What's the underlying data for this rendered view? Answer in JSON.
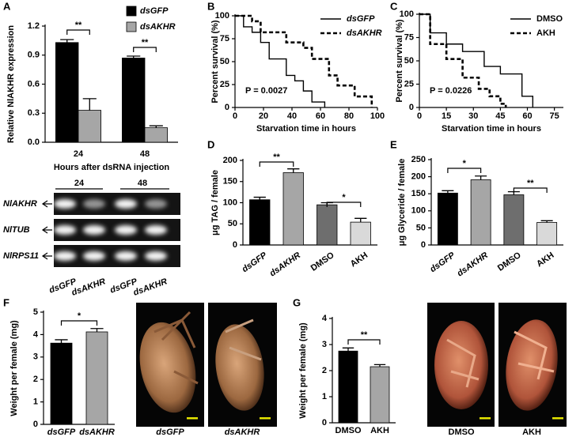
{
  "chart_data": [
    {
      "type": "bar",
      "panel_label": "A",
      "ylabel": "Relative NlAKHR expression",
      "xlabel": "Hours after dsRNA injection",
      "categories": [
        "24",
        "48"
      ],
      "series": [
        {
          "name": "dsGFP",
          "color": "#000000",
          "values": [
            1.03,
            0.87
          ],
          "errors": [
            0.03,
            0.02
          ]
        },
        {
          "name": "dsAKHR",
          "color": "#a6a6a6",
          "values": [
            0.33,
            0.15
          ],
          "errors": [
            0.12,
            0.02
          ]
        }
      ],
      "ylim": [
        0,
        1.2
      ],
      "yticks": [
        {
          "value": 0,
          "label": "0.0"
        },
        0.3,
        0.6,
        0.9,
        1.2
      ],
      "annotations": [
        "**",
        "**"
      ],
      "legend": "upper right"
    },
    {
      "type": "line",
      "panel_label": "B",
      "drawstyle": "steps-post",
      "ylabel": "Percent survival (%)",
      "xlabel": "Starvation time in hours",
      "series": [
        {
          "name": "dsGFP",
          "color": "#000000",
          "linestyle": "solid",
          "x": [
            0,
            6,
            12,
            18,
            24,
            36,
            42,
            48,
            54,
            63
          ],
          "values": [
            100,
            88,
            82,
            71,
            53,
            35,
            29,
            18,
            6,
            0
          ]
        },
        {
          "name": "dsAKHR",
          "color": "#000000",
          "linestyle": "dashed",
          "x": [
            0,
            12,
            18,
            36,
            48,
            54,
            66,
            72,
            84,
            96
          ],
          "values": [
            100,
            94,
            82,
            71,
            65,
            53,
            35,
            24,
            12,
            0
          ]
        }
      ],
      "xlim": [
        0,
        100
      ],
      "xticks": [
        0,
        20,
        40,
        60,
        80,
        100
      ],
      "ylim": [
        0,
        100
      ],
      "yticks": [
        0,
        25,
        50,
        75,
        100
      ],
      "annotation": "P = 0.0027",
      "legend": "upper right"
    },
    {
      "type": "line",
      "panel_label": "C",
      "drawstyle": "steps-post",
      "ylabel": "Percent survival (%)",
      "xlabel": "Starvation time in hours",
      "series": [
        {
          "name": "DMSO",
          "color": "#000000",
          "linestyle": "solid",
          "x": [
            0,
            6,
            15,
            24,
            36,
            45,
            57,
            63
          ],
          "values": [
            100,
            80,
            68,
            60,
            44,
            36,
            12,
            0
          ]
        },
        {
          "name": "AKH",
          "color": "#000000",
          "linestyle": "dashed",
          "x": [
            0,
            6,
            15,
            24,
            33,
            39,
            45,
            48
          ],
          "values": [
            100,
            68,
            52,
            32,
            20,
            12,
            4,
            0
          ]
        }
      ],
      "xlim": [
        0,
        80
      ],
      "xticks": [
        0,
        15,
        30,
        45,
        60,
        75
      ],
      "ylim": [
        0,
        100
      ],
      "yticks": [
        0,
        25,
        50,
        75,
        100
      ],
      "annotation": "P = 0.0226",
      "legend": "upper right"
    },
    {
      "type": "bar",
      "panel_label": "D",
      "ylabel": "μg TAG / female",
      "categories": [
        "dsGFP",
        "dsAKHR",
        "DMSO",
        "AKH"
      ],
      "values": [
        107,
        171,
        95,
        54
      ],
      "errors": [
        6,
        9,
        5,
        9
      ],
      "colors": [
        "#000000",
        "#a6a6a6",
        "#6e6e6e",
        "#d9d9d9"
      ],
      "ylim": [
        0,
        200
      ],
      "yticks": [
        0,
        50,
        100,
        150,
        200
      ],
      "annotations": [
        "**",
        "*"
      ]
    },
    {
      "type": "bar",
      "panel_label": "E",
      "ylabel": "μg Glyceride / female",
      "categories": [
        "dsGFP",
        "dsAKHR",
        "DMSO",
        "AKH"
      ],
      "values": [
        152,
        191,
        147,
        66
      ],
      "errors": [
        7,
        11,
        9,
        5
      ],
      "colors": [
        "#000000",
        "#a6a6a6",
        "#6e6e6e",
        "#d9d9d9"
      ],
      "ylim": [
        0,
        250
      ],
      "yticks": [
        0,
        50,
        100,
        150,
        200,
        250
      ],
      "annotations": [
        "*",
        "**"
      ]
    },
    {
      "type": "bar",
      "panel_label": "F",
      "ylabel": "Weight per female (mg)",
      "categories": [
        "dsGFP",
        "dsAKHR"
      ],
      "values": [
        3.62,
        4.12
      ],
      "errors": [
        0.15,
        0.15
      ],
      "colors": [
        "#000000",
        "#a6a6a6"
      ],
      "ylim": [
        0,
        5
      ],
      "yticks": [
        0,
        1,
        2,
        3,
        4,
        5
      ],
      "annotations": [
        "*"
      ]
    },
    {
      "type": "bar",
      "panel_label": "G",
      "ylabel": "Weight per female (mg)",
      "categories": [
        "DMSO",
        "AKH"
      ],
      "values": [
        2.75,
        2.15
      ],
      "errors": [
        0.12,
        0.08
      ],
      "colors": [
        "#000000",
        "#a6a6a6"
      ],
      "ylim": [
        0,
        4
      ],
      "yticks": [
        0,
        1,
        2,
        3,
        4
      ],
      "annotations": [
        "**"
      ]
    }
  ],
  "gel": {
    "lanes": [
      "24",
      "48"
    ],
    "genes": [
      "NlAKHR",
      "NlTUB",
      "NlRPS11"
    ],
    "samples": [
      "dsGFP",
      "dsAKHR",
      "dsGFP",
      "dsAKHR"
    ]
  },
  "photos": [
    [
      "dsGFP",
      "dsAKHR"
    ],
    [
      "DMSO",
      "AKH"
    ]
  ]
}
